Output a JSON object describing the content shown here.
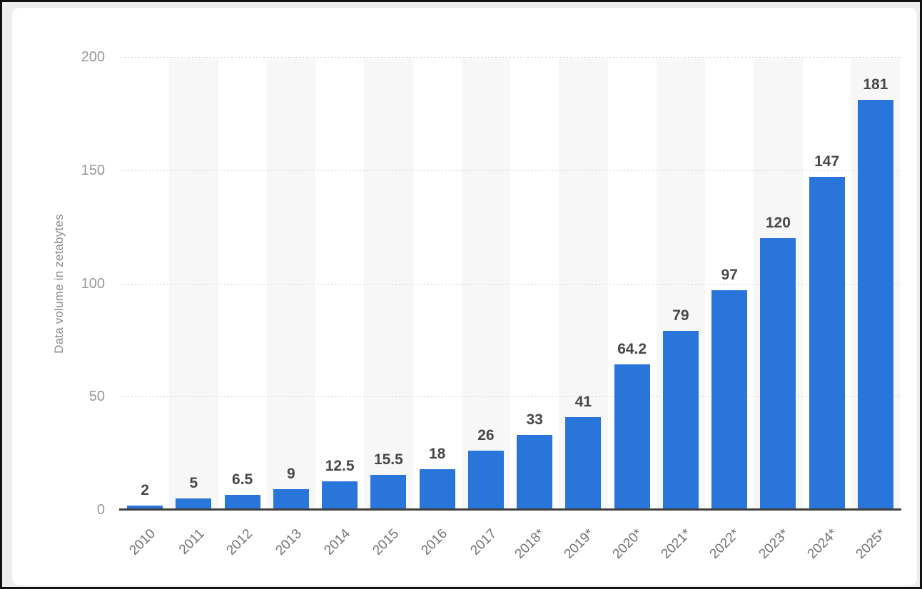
{
  "chart_data": {
    "type": "bar",
    "title": "",
    "xlabel": "",
    "ylabel": "Data volume in zetabytes",
    "categories": [
      "2010",
      "2011",
      "2012",
      "2013",
      "2014",
      "2015",
      "2016",
      "2017",
      "2018*",
      "2019*",
      "2020*",
      "2021*",
      "2022*",
      "2023*",
      "2024*",
      "2025*"
    ],
    "values": [
      2,
      5,
      6.5,
      9,
      12.5,
      15.5,
      18,
      26,
      33,
      41,
      64.2,
      79,
      97,
      120,
      147,
      181
    ],
    "value_labels": [
      "2",
      "5",
      "6.5",
      "9",
      "12.5",
      "15.5",
      "18",
      "26",
      "33",
      "41",
      "64.2",
      "79",
      "97",
      "120",
      "147",
      "181"
    ],
    "ylim": [
      0,
      200
    ],
    "yticks": [
      0,
      50,
      100,
      150,
      200
    ],
    "grid": "horizontal-dotted",
    "legend": "none",
    "alternating_column_bands": "odd columns shaded"
  },
  "colors": {
    "bar": "#2a75da",
    "column_band": "#f7f7f7",
    "gridline": "#cfcfcf",
    "axis_line": "#3f3f3f",
    "value_label": "#474747",
    "y_tick_label": "#979797",
    "x_tick_label": "#737373",
    "y_axis_title": "#8a8a8a",
    "page_background": "#ededed",
    "card_background": "#ffffff",
    "frame_border": "#121212"
  }
}
